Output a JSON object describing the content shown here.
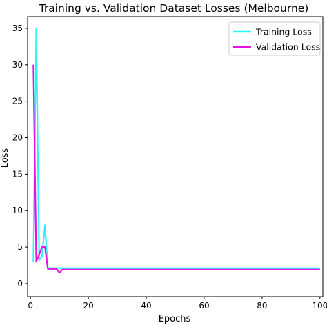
{
  "chart_data": {
    "type": "line",
    "title": "Training vs. Validation Dataset Losses (Melbourne)",
    "xlabel": "Epochs",
    "ylabel": "Loss",
    "xlim": [
      -1,
      101
    ],
    "ylim": [
      -1.8,
      36.6
    ],
    "xticks": [
      0,
      20,
      40,
      60,
      80,
      100
    ],
    "yticks": [
      0,
      5,
      10,
      15,
      20,
      25,
      30,
      35
    ],
    "grid": false,
    "legend_position": "top-right",
    "series": [
      {
        "name": "Training Loss",
        "color": "#2ff2f2",
        "x": [
          1,
          2,
          3,
          4,
          5,
          6,
          7,
          8,
          9,
          10,
          11,
          12,
          100
        ],
        "y": [
          3.0,
          35.0,
          3.2,
          3.8,
          8.0,
          2.1,
          2.1,
          2.1,
          2.1,
          2.1,
          2.1,
          2.1,
          2.1
        ]
      },
      {
        "name": "Validation Loss",
        "color": "#e413e4",
        "x": [
          1,
          2,
          3,
          4,
          5,
          6,
          7,
          8,
          9,
          10,
          11,
          12,
          100
        ],
        "y": [
          30.0,
          3.0,
          4.0,
          5.0,
          5.0,
          2.0,
          2.0,
          2.0,
          2.0,
          1.5,
          1.9,
          1.9,
          1.9
        ]
      }
    ]
  }
}
